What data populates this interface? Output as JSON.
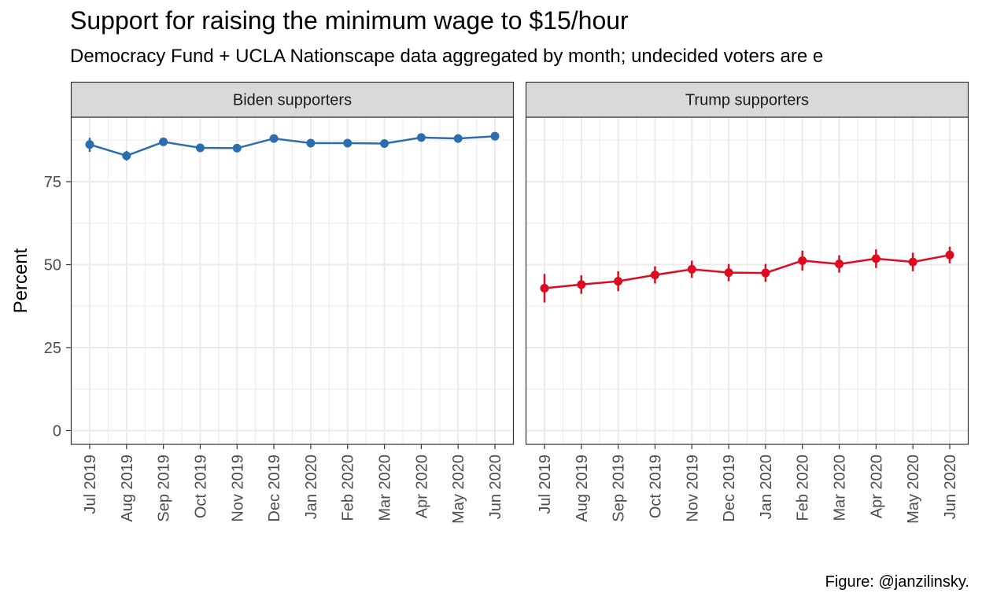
{
  "title": "Support for raising the minimum wage to $15/hour",
  "subtitle": "Democracy Fund + UCLA Nationscape data aggregated by month; undecided voters are e",
  "caption": "Figure: @janzilinsky.",
  "colors": {
    "biden": "#2c6ead",
    "trump": "#dd0a20",
    "grid": "#ebebeb",
    "strip": "#d9d9d9"
  },
  "chart_data": {
    "type": "line",
    "ylabel": "Percent",
    "ylim": [
      0,
      100
    ],
    "yticks": [
      0,
      25,
      50,
      75
    ],
    "grid": true,
    "categories": [
      "Jul 2019",
      "Aug 2019",
      "Sep 2019",
      "Oct 2019",
      "Nov 2019",
      "Dec 2019",
      "Jan 2020",
      "Feb 2020",
      "Mar 2020",
      "Apr 2020",
      "May 2020",
      "Jun 2020"
    ],
    "panels": [
      {
        "label": "Biden supporters",
        "color_key": "biden",
        "values": [
          86.2,
          82.8,
          87.0,
          85.2,
          85.1,
          88.0,
          86.6,
          86.6,
          86.5,
          88.3,
          88.0,
          88.7
        ],
        "ci_low": [
          84.0,
          81.3,
          85.8,
          84.1,
          84.0,
          87.0,
          85.6,
          85.6,
          85.5,
          87.4,
          87.2,
          87.9
        ],
        "ci_high": [
          88.2,
          84.3,
          88.2,
          86.3,
          86.2,
          89.0,
          87.6,
          87.6,
          87.5,
          89.2,
          88.8,
          89.5
        ]
      },
      {
        "label": "Trump supporters",
        "color_key": "trump",
        "values": [
          42.9,
          44.0,
          45.0,
          46.9,
          48.6,
          47.6,
          47.5,
          51.2,
          50.2,
          51.8,
          50.8,
          52.9
        ],
        "ci_low": [
          38.6,
          41.2,
          42.0,
          44.3,
          46.0,
          45.0,
          44.8,
          48.2,
          47.6,
          49.0,
          48.0,
          50.4
        ],
        "ci_high": [
          47.2,
          46.8,
          48.0,
          49.5,
          51.2,
          50.2,
          50.2,
          54.2,
          52.8,
          54.6,
          53.6,
          55.4
        ]
      }
    ]
  }
}
